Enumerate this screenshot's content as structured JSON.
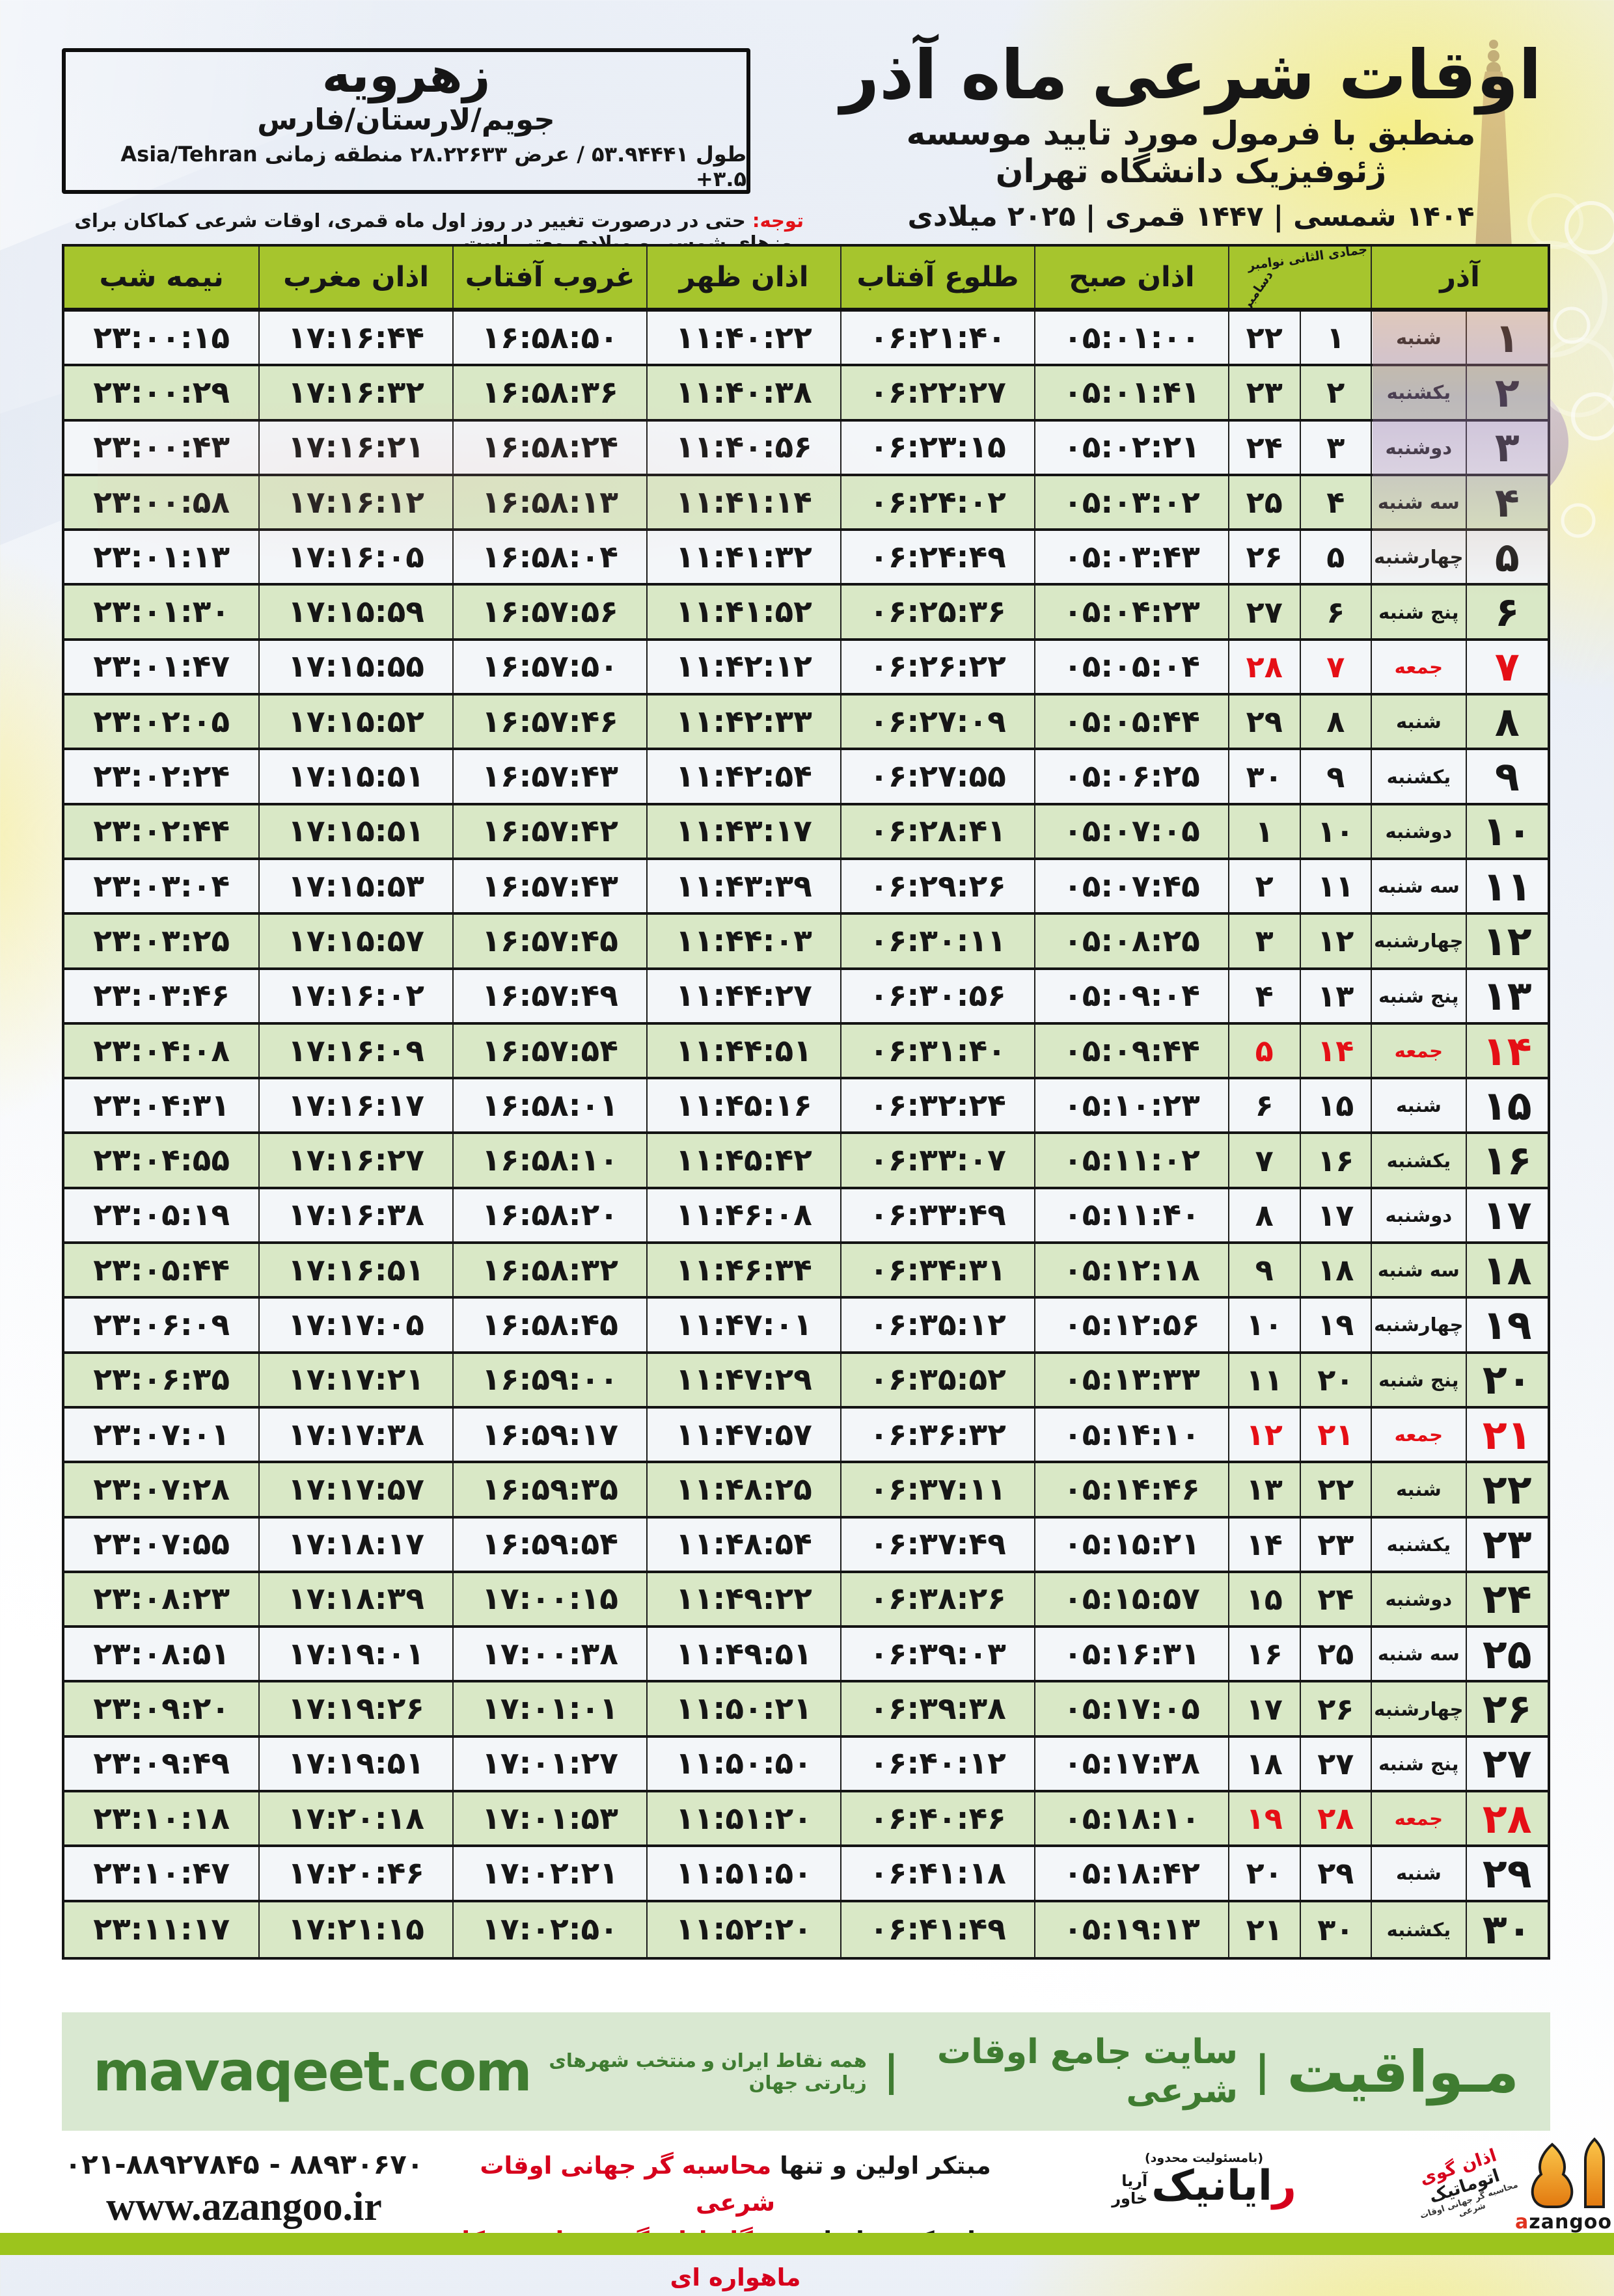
{
  "header": {
    "title": "اوقات شرعی ماه آذر",
    "subtitle": "منطبق با فرمول مورد تایید موسسه ژئوفیزیک دانشگاه تهران",
    "years": "۱۴۰۴ شمسی | ۱۴۴۷ قمری | ۲۰۲۵ میلادی"
  },
  "location": {
    "name": "زهرویه",
    "region": "جویم/لارستان/فارس",
    "coords": "طول ۵۳.۹۴۴۴۱ / عرض ۲۸.۲۲۶۳۳ منطقه زمانی Asia/Tehran +۳.۵"
  },
  "notice": {
    "label": "توجه:",
    "text": " حتی در درصورت تغییر در روز اول ماه قمری، اوقات شرعی کماکان برای روزهای شمسی و میلادی معتبر است."
  },
  "table": {
    "month_header": "آذر",
    "date_header_line1": "جمادی الثانی نوامبر",
    "date_header_line2": "دسامبر",
    "columns": {
      "sobh": "اذان صبح",
      "sunrise": "طلوع آفتاب",
      "noon": "اذان ظهر",
      "sunset": "غروب آفتاب",
      "maghreb": "اذان مغرب",
      "midnight": "نیمه شب"
    },
    "rows": [
      {
        "azar": "۱",
        "weekday": "شنبه",
        "hijri": "۱",
        "greg": "۲۲",
        "sobh": "۰۵:۰۱:۰۰",
        "sunrise": "۰۶:۲۱:۴۰",
        "noon": "۱۱:۴۰:۲۲",
        "sunset": "۱۶:۵۸:۵۰",
        "maghreb": "۱۷:۱۶:۴۴",
        "midnight": "۲۳:۰۰:۱۵",
        "friday": false
      },
      {
        "azar": "۲",
        "weekday": "یکشنبه",
        "hijri": "۲",
        "greg": "۲۳",
        "sobh": "۰۵:۰۱:۴۱",
        "sunrise": "۰۶:۲۲:۲۷",
        "noon": "۱۱:۴۰:۳۸",
        "sunset": "۱۶:۵۸:۳۶",
        "maghreb": "۱۷:۱۶:۳۲",
        "midnight": "۲۳:۰۰:۲۹",
        "friday": false
      },
      {
        "azar": "۳",
        "weekday": "دوشنبه",
        "hijri": "۳",
        "greg": "۲۴",
        "sobh": "۰۵:۰۲:۲۱",
        "sunrise": "۰۶:۲۳:۱۵",
        "noon": "۱۱:۴۰:۵۶",
        "sunset": "۱۶:۵۸:۲۴",
        "maghreb": "۱۷:۱۶:۲۱",
        "midnight": "۲۳:۰۰:۴۳",
        "friday": false
      },
      {
        "azar": "۴",
        "weekday": "سه شنبه",
        "hijri": "۴",
        "greg": "۲۵",
        "sobh": "۰۵:۰۳:۰۲",
        "sunrise": "۰۶:۲۴:۰۲",
        "noon": "۱۱:۴۱:۱۴",
        "sunset": "۱۶:۵۸:۱۳",
        "maghreb": "۱۷:۱۶:۱۲",
        "midnight": "۲۳:۰۰:۵۸",
        "friday": false
      },
      {
        "azar": "۵",
        "weekday": "چهارشنبه",
        "hijri": "۵",
        "greg": "۲۶",
        "sobh": "۰۵:۰۳:۴۳",
        "sunrise": "۰۶:۲۴:۴۹",
        "noon": "۱۱:۴۱:۳۲",
        "sunset": "۱۶:۵۸:۰۴",
        "maghreb": "۱۷:۱۶:۰۵",
        "midnight": "۲۳:۰۱:۱۳",
        "friday": false
      },
      {
        "azar": "۶",
        "weekday": "پنج شنبه",
        "hijri": "۶",
        "greg": "۲۷",
        "sobh": "۰۵:۰۴:۲۳",
        "sunrise": "۰۶:۲۵:۳۶",
        "noon": "۱۱:۴۱:۵۲",
        "sunset": "۱۶:۵۷:۵۶",
        "maghreb": "۱۷:۱۵:۵۹",
        "midnight": "۲۳:۰۱:۳۰",
        "friday": false
      },
      {
        "azar": "۷",
        "weekday": "جمعه",
        "hijri": "۷",
        "greg": "۲۸",
        "sobh": "۰۵:۰۵:۰۴",
        "sunrise": "۰۶:۲۶:۲۲",
        "noon": "۱۱:۴۲:۱۲",
        "sunset": "۱۶:۵۷:۵۰",
        "maghreb": "۱۷:۱۵:۵۵",
        "midnight": "۲۳:۰۱:۴۷",
        "friday": true
      },
      {
        "azar": "۸",
        "weekday": "شنبه",
        "hijri": "۸",
        "greg": "۲۹",
        "sobh": "۰۵:۰۵:۴۴",
        "sunrise": "۰۶:۲۷:۰۹",
        "noon": "۱۱:۴۲:۳۳",
        "sunset": "۱۶:۵۷:۴۶",
        "maghreb": "۱۷:۱۵:۵۲",
        "midnight": "۲۳:۰۲:۰۵",
        "friday": false
      },
      {
        "azar": "۹",
        "weekday": "یکشنبه",
        "hijri": "۹",
        "greg": "۳۰",
        "sobh": "۰۵:۰۶:۲۵",
        "sunrise": "۰۶:۲۷:۵۵",
        "noon": "۱۱:۴۲:۵۴",
        "sunset": "۱۶:۵۷:۴۳",
        "maghreb": "۱۷:۱۵:۵۱",
        "midnight": "۲۳:۰۲:۲۴",
        "friday": false
      },
      {
        "azar": "۱۰",
        "weekday": "دوشنبه",
        "hijri": "۱۰",
        "greg": "۱",
        "sobh": "۰۵:۰۷:۰۵",
        "sunrise": "۰۶:۲۸:۴۱",
        "noon": "۱۱:۴۳:۱۷",
        "sunset": "۱۶:۵۷:۴۲",
        "maghreb": "۱۷:۱۵:۵۱",
        "midnight": "۲۳:۰۲:۴۴",
        "friday": false
      },
      {
        "azar": "۱۱",
        "weekday": "سه شنبه",
        "hijri": "۱۱",
        "greg": "۲",
        "sobh": "۰۵:۰۷:۴۵",
        "sunrise": "۰۶:۲۹:۲۶",
        "noon": "۱۱:۴۳:۳۹",
        "sunset": "۱۶:۵۷:۴۳",
        "maghreb": "۱۷:۱۵:۵۳",
        "midnight": "۲۳:۰۳:۰۴",
        "friday": false
      },
      {
        "azar": "۱۲",
        "weekday": "چهارشنبه",
        "hijri": "۱۲",
        "greg": "۳",
        "sobh": "۰۵:۰۸:۲۵",
        "sunrise": "۰۶:۳۰:۱۱",
        "noon": "۱۱:۴۴:۰۳",
        "sunset": "۱۶:۵۷:۴۵",
        "maghreb": "۱۷:۱۵:۵۷",
        "midnight": "۲۳:۰۳:۲۵",
        "friday": false
      },
      {
        "azar": "۱۳",
        "weekday": "پنج شنبه",
        "hijri": "۱۳",
        "greg": "۴",
        "sobh": "۰۵:۰۹:۰۴",
        "sunrise": "۰۶:۳۰:۵۶",
        "noon": "۱۱:۴۴:۲۷",
        "sunset": "۱۶:۵۷:۴۹",
        "maghreb": "۱۷:۱۶:۰۲",
        "midnight": "۲۳:۰۳:۴۶",
        "friday": false
      },
      {
        "azar": "۱۴",
        "weekday": "جمعه",
        "hijri": "۱۴",
        "greg": "۵",
        "sobh": "۰۵:۰۹:۴۴",
        "sunrise": "۰۶:۳۱:۴۰",
        "noon": "۱۱:۴۴:۵۱",
        "sunset": "۱۶:۵۷:۵۴",
        "maghreb": "۱۷:۱۶:۰۹",
        "midnight": "۲۳:۰۴:۰۸",
        "friday": true
      },
      {
        "azar": "۱۵",
        "weekday": "شنبه",
        "hijri": "۱۵",
        "greg": "۶",
        "sobh": "۰۵:۱۰:۲۳",
        "sunrise": "۰۶:۳۲:۲۴",
        "noon": "۱۱:۴۵:۱۶",
        "sunset": "۱۶:۵۸:۰۱",
        "maghreb": "۱۷:۱۶:۱۷",
        "midnight": "۲۳:۰۴:۳۱",
        "friday": false
      },
      {
        "azar": "۱۶",
        "weekday": "یکشنبه",
        "hijri": "۱۶",
        "greg": "۷",
        "sobh": "۰۵:۱۱:۰۲",
        "sunrise": "۰۶:۳۳:۰۷",
        "noon": "۱۱:۴۵:۴۲",
        "sunset": "۱۶:۵۸:۱۰",
        "maghreb": "۱۷:۱۶:۲۷",
        "midnight": "۲۳:۰۴:۵۵",
        "friday": false
      },
      {
        "azar": "۱۷",
        "weekday": "دوشنبه",
        "hijri": "۱۷",
        "greg": "۸",
        "sobh": "۰۵:۱۱:۴۰",
        "sunrise": "۰۶:۳۳:۴۹",
        "noon": "۱۱:۴۶:۰۸",
        "sunset": "۱۶:۵۸:۲۰",
        "maghreb": "۱۷:۱۶:۳۸",
        "midnight": "۲۳:۰۵:۱۹",
        "friday": false
      },
      {
        "azar": "۱۸",
        "weekday": "سه شنبه",
        "hijri": "۱۸",
        "greg": "۹",
        "sobh": "۰۵:۱۲:۱۸",
        "sunrise": "۰۶:۳۴:۳۱",
        "noon": "۱۱:۴۶:۳۴",
        "sunset": "۱۶:۵۸:۳۲",
        "maghreb": "۱۷:۱۶:۵۱",
        "midnight": "۲۳:۰۵:۴۴",
        "friday": false
      },
      {
        "azar": "۱۹",
        "weekday": "چهارشنبه",
        "hijri": "۱۹",
        "greg": "۱۰",
        "sobh": "۰۵:۱۲:۵۶",
        "sunrise": "۰۶:۳۵:۱۲",
        "noon": "۱۱:۴۷:۰۱",
        "sunset": "۱۶:۵۸:۴۵",
        "maghreb": "۱۷:۱۷:۰۵",
        "midnight": "۲۳:۰۶:۰۹",
        "friday": false
      },
      {
        "azar": "۲۰",
        "weekday": "پنج شنبه",
        "hijri": "۲۰",
        "greg": "۱۱",
        "sobh": "۰۵:۱۳:۳۳",
        "sunrise": "۰۶:۳۵:۵۲",
        "noon": "۱۱:۴۷:۲۹",
        "sunset": "۱۶:۵۹:۰۰",
        "maghreb": "۱۷:۱۷:۲۱",
        "midnight": "۲۳:۰۶:۳۵",
        "friday": false
      },
      {
        "azar": "۲۱",
        "weekday": "جمعه",
        "hijri": "۲۱",
        "greg": "۱۲",
        "sobh": "۰۵:۱۴:۱۰",
        "sunrise": "۰۶:۳۶:۳۲",
        "noon": "۱۱:۴۷:۵۷",
        "sunset": "۱۶:۵۹:۱۷",
        "maghreb": "۱۷:۱۷:۳۸",
        "midnight": "۲۳:۰۷:۰۱",
        "friday": true
      },
      {
        "azar": "۲۲",
        "weekday": "شنبه",
        "hijri": "۲۲",
        "greg": "۱۳",
        "sobh": "۰۵:۱۴:۴۶",
        "sunrise": "۰۶:۳۷:۱۱",
        "noon": "۱۱:۴۸:۲۵",
        "sunset": "۱۶:۵۹:۳۵",
        "maghreb": "۱۷:۱۷:۵۷",
        "midnight": "۲۳:۰۷:۲۸",
        "friday": false
      },
      {
        "azar": "۲۳",
        "weekday": "یکشنبه",
        "hijri": "۲۳",
        "greg": "۱۴",
        "sobh": "۰۵:۱۵:۲۱",
        "sunrise": "۰۶:۳۷:۴۹",
        "noon": "۱۱:۴۸:۵۴",
        "sunset": "۱۶:۵۹:۵۴",
        "maghreb": "۱۷:۱۸:۱۷",
        "midnight": "۲۳:۰۷:۵۵",
        "friday": false
      },
      {
        "azar": "۲۴",
        "weekday": "دوشنبه",
        "hijri": "۲۴",
        "greg": "۱۵",
        "sobh": "۰۵:۱۵:۵۷",
        "sunrise": "۰۶:۳۸:۲۶",
        "noon": "۱۱:۴۹:۲۲",
        "sunset": "۱۷:۰۰:۱۵",
        "maghreb": "۱۷:۱۸:۳۹",
        "midnight": "۲۳:۰۸:۲۳",
        "friday": false
      },
      {
        "azar": "۲۵",
        "weekday": "سه شنبه",
        "hijri": "۲۵",
        "greg": "۱۶",
        "sobh": "۰۵:۱۶:۳۱",
        "sunrise": "۰۶:۳۹:۰۳",
        "noon": "۱۱:۴۹:۵۱",
        "sunset": "۱۷:۰۰:۳۸",
        "maghreb": "۱۷:۱۹:۰۱",
        "midnight": "۲۳:۰۸:۵۱",
        "friday": false
      },
      {
        "azar": "۲۶",
        "weekday": "چهارشنبه",
        "hijri": "۲۶",
        "greg": "۱۷",
        "sobh": "۰۵:۱۷:۰۵",
        "sunrise": "۰۶:۳۹:۳۸",
        "noon": "۱۱:۵۰:۲۱",
        "sunset": "۱۷:۰۱:۰۱",
        "maghreb": "۱۷:۱۹:۲۶",
        "midnight": "۲۳:۰۹:۲۰",
        "friday": false
      },
      {
        "azar": "۲۷",
        "weekday": "پنج شنبه",
        "hijri": "۲۷",
        "greg": "۱۸",
        "sobh": "۰۵:۱۷:۳۸",
        "sunrise": "۰۶:۴۰:۱۲",
        "noon": "۱۱:۵۰:۵۰",
        "sunset": "۱۷:۰۱:۲۷",
        "maghreb": "۱۷:۱۹:۵۱",
        "midnight": "۲۳:۰۹:۴۹",
        "friday": false
      },
      {
        "azar": "۲۸",
        "weekday": "جمعه",
        "hijri": "۲۸",
        "greg": "۱۹",
        "sobh": "۰۵:۱۸:۱۰",
        "sunrise": "۰۶:۴۰:۴۶",
        "noon": "۱۱:۵۱:۲۰",
        "sunset": "۱۷:۰۱:۵۳",
        "maghreb": "۱۷:۲۰:۱۸",
        "midnight": "۲۳:۱۰:۱۸",
        "friday": true
      },
      {
        "azar": "۲۹",
        "weekday": "شنبه",
        "hijri": "۲۹",
        "greg": "۲۰",
        "sobh": "۰۵:۱۸:۴۲",
        "sunrise": "۰۶:۴۱:۱۸",
        "noon": "۱۱:۵۱:۵۰",
        "sunset": "۱۷:۰۲:۲۱",
        "maghreb": "۱۷:۲۰:۴۶",
        "midnight": "۲۳:۱۰:۴۷",
        "friday": false
      },
      {
        "azar": "۳۰",
        "weekday": "یکشنبه",
        "hijri": "۳۰",
        "greg": "۲۱",
        "sobh": "۰۵:۱۹:۱۳",
        "sunrise": "۰۶:۴۱:۴۹",
        "noon": "۱۱:۵۲:۲۰",
        "sunset": "۱۷:۰۲:۵۰",
        "maghreb": "۱۷:۲۱:۱۵",
        "midnight": "۲۳:۱۱:۱۷",
        "friday": false
      }
    ]
  },
  "footer_band": {
    "brand": "مـواقیت",
    "separator": "|",
    "tagline": "سایت جامع اوقات شرعی",
    "tagline2": "همه نقاط ایران و منتخب شهرهای زیارتی جهان",
    "site": "mavaqeet.com"
  },
  "footer": {
    "phone": "۰۲۱-۸۸۹۲۷۸۴۵ - ۸۸۹۳۰۶۷۰",
    "site": "www.azangoo.ir",
    "line1_black": "مبتکر اولین و تنها ",
    "line1_red": "محاسبه گر جهانی اوقات شرعی",
    "line2_black": "و تولید کننده انواع ",
    "line2_red": "دستگاه اذان گوی تمام خودکار ماهواره ای",
    "rayanik_small": "(بامسئولیت محدود)",
    "rayanik_initial": "ر",
    "rayanik_rest": "ایانیک",
    "rayanik_sub1": "آریا",
    "rayanik_sub2": "خاور",
    "azangoo_fa_red": "اذان گوی ",
    "azangoo_fa_black": "اتوماتیک",
    "azangoo_sub": "محاسبه گر جهانی اوقات شرعی",
    "azangoo_en_a": "a",
    "azangoo_en_rest": "zangoo"
  },
  "colors": {
    "header_green": "#a6c52d",
    "row_green": "#d9e8c6",
    "friday_red": "#e50f16",
    "footer_green_text": "#3f7c31",
    "band_bg": "#d9e8d1",
    "strip_green": "#9cc41d"
  }
}
